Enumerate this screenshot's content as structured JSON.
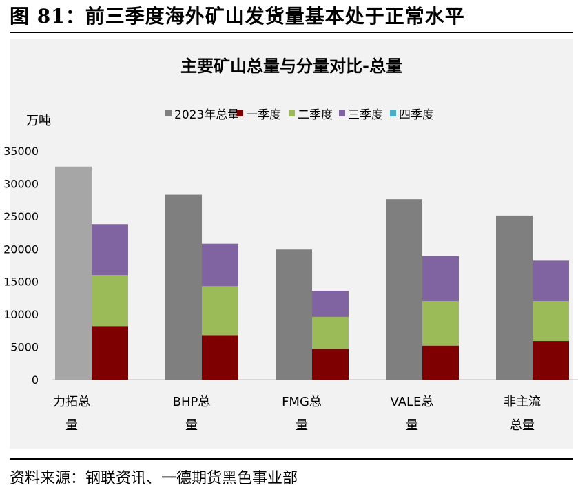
{
  "figure_title": "图 81：前三季度海外矿山发货量基本处于正常水平",
  "source": "资料来源：钢联资讯、一德期货黑色事业部",
  "chart_data": {
    "type": "bar",
    "title": "主要矿山总量与分量对比-总量",
    "ylabel": "万吨",
    "ylim": [
      0,
      35000
    ],
    "yticks": [
      0,
      5000,
      10000,
      15000,
      20000,
      25000,
      30000,
      35000
    ],
    "categories": [
      "力拓总量",
      "BHP总量",
      "FMG总量",
      "VALE总量",
      "非主流总量"
    ],
    "category_lines": [
      [
        "力拓总",
        "量"
      ],
      [
        "BHP总",
        "量"
      ],
      [
        "FMG总",
        "量"
      ],
      [
        "VALE总",
        "量"
      ],
      [
        "非主流",
        "总量"
      ]
    ],
    "legend_position": "top",
    "series": [
      {
        "name": "2023年总量",
        "color": "#7f7f7f",
        "stack": "total",
        "values": [
          32600,
          28300,
          19900,
          27600,
          25100
        ]
      },
      {
        "name": "一季度",
        "color": "#7f0000",
        "stack": "quarters",
        "values": [
          8200,
          6800,
          4700,
          5200,
          5900
        ]
      },
      {
        "name": "二季度",
        "color": "#9bbb59",
        "stack": "quarters",
        "values": [
          7800,
          7500,
          4900,
          6800,
          6100
        ]
      },
      {
        "name": "三季度",
        "color": "#8064a2",
        "stack": "quarters",
        "values": [
          7800,
          6500,
          4000,
          6900,
          6200
        ]
      },
      {
        "name": "四季度",
        "color": "#4bacc6",
        "stack": "quarters",
        "values": [
          0,
          0,
          0,
          0,
          0
        ]
      }
    ],
    "first_total_bar_color": "#a6a6a6",
    "grid": false
  }
}
